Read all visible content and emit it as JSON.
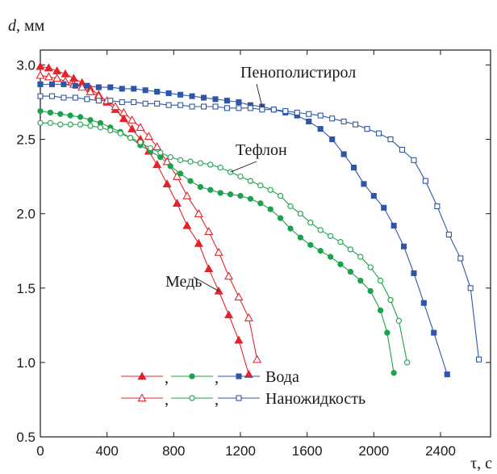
{
  "chart_data": {
    "type": "line",
    "ylabel_var": "d",
    "ylabel_unit": ", мм",
    "xlabel": "τ, с",
    "xlim": [
      0,
      2700
    ],
    "ylim": [
      0.5,
      3.1
    ],
    "xticks": [
      0,
      400,
      800,
      1200,
      1600,
      2000,
      2400
    ],
    "yticks": [
      0.5,
      1.0,
      1.5,
      2.0,
      2.5,
      3.0
    ],
    "ytick_labels": [
      "0.5",
      "1.0",
      "1.5",
      "2.0",
      "2.5",
      "3.0"
    ],
    "grid": false,
    "colors": {
      "copper": "#e3242b",
      "teflon": "#1aa34a",
      "polystyrene": "#2f56a6"
    },
    "annotations": [
      {
        "text": "Пенополистирол",
        "target_series": "polystyrene_water"
      },
      {
        "text": "Тефлон",
        "target_series": "teflon_nano"
      },
      {
        "text": "Медь",
        "target_series": "copper_water"
      }
    ],
    "legend": {
      "placement": "bottom-left",
      "rows": [
        {
          "label": "Вода",
          "filled": true,
          "separators": [
            ",",
            ","
          ]
        },
        {
          "label": "Наножидкость",
          "filled": false,
          "separators": [
            ",",
            ","
          ]
        }
      ]
    },
    "series": [
      {
        "id": "copper_water",
        "material": "copper",
        "fluid": "water",
        "marker": "triangle",
        "filled": true,
        "x": [
          0,
          50,
          100,
          150,
          200,
          250,
          300,
          350,
          400,
          450,
          500,
          550,
          600,
          650,
          700,
          760,
          820,
          880,
          950,
          1010,
          1070,
          1130,
          1190,
          1250
        ],
        "y": [
          2.99,
          2.98,
          2.96,
          2.94,
          2.91,
          2.88,
          2.84,
          2.8,
          2.75,
          2.7,
          2.64,
          2.57,
          2.5,
          2.42,
          2.33,
          2.2,
          2.07,
          1.92,
          1.8,
          1.63,
          1.48,
          1.32,
          1.15,
          0.92
        ]
      },
      {
        "id": "copper_nano",
        "material": "copper",
        "fluid": "nanofluid",
        "marker": "triangle",
        "filled": false,
        "x": [
          0,
          50,
          100,
          150,
          200,
          250,
          300,
          350,
          400,
          450,
          500,
          550,
          600,
          650,
          700,
          760,
          820,
          880,
          950,
          1010,
          1070,
          1130,
          1190,
          1250,
          1300
        ],
        "y": [
          2.93,
          2.92,
          2.91,
          2.89,
          2.87,
          2.85,
          2.82,
          2.79,
          2.76,
          2.72,
          2.68,
          2.63,
          2.58,
          2.52,
          2.45,
          2.35,
          2.25,
          2.12,
          2.0,
          1.88,
          1.74,
          1.58,
          1.44,
          1.3,
          1.02
        ]
      },
      {
        "id": "teflon_water",
        "material": "teflon",
        "fluid": "water",
        "marker": "circle",
        "filled": true,
        "x": [
          0,
          60,
          120,
          180,
          240,
          300,
          360,
          420,
          480,
          540,
          600,
          660,
          720,
          780,
          840,
          900,
          960,
          1020,
          1080,
          1140,
          1200,
          1260,
          1320,
          1380,
          1440,
          1500,
          1560,
          1620,
          1680,
          1740,
          1800,
          1860,
          1920,
          1980,
          2040,
          2080,
          2120
        ],
        "y": [
          2.69,
          2.68,
          2.67,
          2.66,
          2.65,
          2.63,
          2.61,
          2.58,
          2.55,
          2.51,
          2.46,
          2.42,
          2.38,
          2.32,
          2.27,
          2.22,
          2.18,
          2.16,
          2.14,
          2.13,
          2.12,
          2.1,
          2.07,
          2.03,
          1.97,
          1.9,
          1.84,
          1.79,
          1.75,
          1.71,
          1.66,
          1.61,
          1.55,
          1.48,
          1.35,
          1.2,
          0.93
        ]
      },
      {
        "id": "teflon_nano",
        "material": "teflon",
        "fluid": "nanofluid",
        "marker": "circle",
        "filled": false,
        "x": [
          0,
          60,
          120,
          180,
          240,
          300,
          360,
          420,
          480,
          540,
          600,
          660,
          720,
          780,
          840,
          900,
          960,
          1020,
          1080,
          1140,
          1200,
          1260,
          1320,
          1380,
          1440,
          1500,
          1560,
          1620,
          1680,
          1740,
          1800,
          1860,
          1920,
          1980,
          2040,
          2100,
          2150,
          2200
        ],
        "y": [
          2.61,
          2.61,
          2.6,
          2.6,
          2.6,
          2.59,
          2.58,
          2.56,
          2.54,
          2.51,
          2.48,
          2.44,
          2.41,
          2.38,
          2.36,
          2.35,
          2.34,
          2.33,
          2.31,
          2.28,
          2.25,
          2.22,
          2.19,
          2.16,
          2.12,
          2.05,
          2.0,
          1.94,
          1.89,
          1.85,
          1.81,
          1.76,
          1.71,
          1.64,
          1.55,
          1.42,
          1.28,
          1.0
        ]
      },
      {
        "id": "polystyrene_water",
        "material": "polystyrene",
        "fluid": "water",
        "marker": "square",
        "filled": true,
        "x": [
          0,
          70,
          140,
          210,
          280,
          350,
          420,
          490,
          560,
          630,
          700,
          770,
          840,
          910,
          980,
          1050,
          1120,
          1190,
          1260,
          1330,
          1400,
          1470,
          1540,
          1610,
          1680,
          1750,
          1820,
          1880,
          1940,
          2000,
          2060,
          2120,
          2180,
          2240,
          2300,
          2360,
          2440
        ],
        "y": [
          2.87,
          2.87,
          2.87,
          2.86,
          2.86,
          2.85,
          2.85,
          2.84,
          2.84,
          2.83,
          2.82,
          2.81,
          2.8,
          2.79,
          2.78,
          2.77,
          2.76,
          2.75,
          2.73,
          2.72,
          2.7,
          2.68,
          2.66,
          2.62,
          2.57,
          2.5,
          2.4,
          2.31,
          2.2,
          2.12,
          2.04,
          1.92,
          1.78,
          1.6,
          1.4,
          1.2,
          0.92
        ]
      },
      {
        "id": "polystyrene_nano",
        "material": "polystyrene",
        "fluid": "nanofluid",
        "marker": "square",
        "filled": false,
        "x": [
          0,
          70,
          140,
          210,
          280,
          350,
          420,
          490,
          560,
          630,
          700,
          770,
          840,
          910,
          980,
          1050,
          1120,
          1190,
          1260,
          1330,
          1400,
          1470,
          1540,
          1610,
          1680,
          1750,
          1820,
          1890,
          1960,
          2030,
          2100,
          2170,
          2240,
          2310,
          2380,
          2450,
          2520,
          2580,
          2630
        ],
        "y": [
          2.79,
          2.79,
          2.78,
          2.78,
          2.77,
          2.76,
          2.76,
          2.75,
          2.75,
          2.74,
          2.74,
          2.73,
          2.73,
          2.72,
          2.72,
          2.72,
          2.71,
          2.71,
          2.71,
          2.7,
          2.7,
          2.69,
          2.68,
          2.67,
          2.66,
          2.64,
          2.62,
          2.6,
          2.57,
          2.54,
          2.5,
          2.43,
          2.36,
          2.22,
          2.05,
          1.86,
          1.7,
          1.5,
          1.02
        ]
      }
    ]
  }
}
